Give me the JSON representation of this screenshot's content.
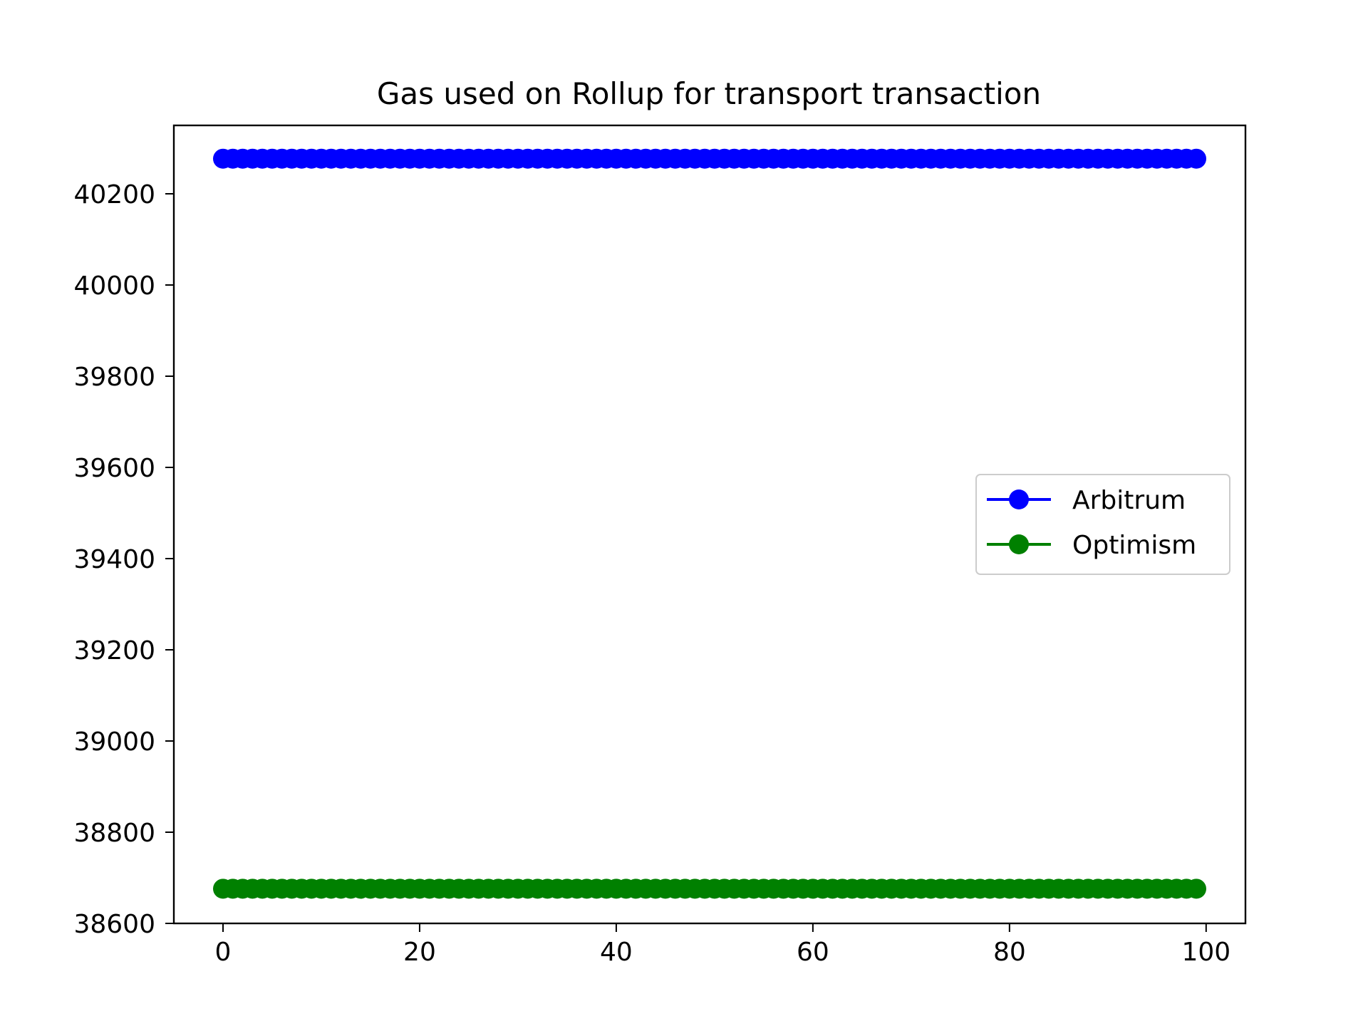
{
  "chart_data": {
    "type": "line",
    "title": "Gas used on Rollup for transport transaction",
    "xlabel": "",
    "ylabel": "",
    "xlim": [
      -5,
      104
    ],
    "ylim": [
      38600,
      40350
    ],
    "x_ticks": [
      0,
      20,
      40,
      60,
      80,
      100
    ],
    "y_ticks": [
      38600,
      38800,
      39000,
      39200,
      39400,
      39600,
      39800,
      40000,
      40200
    ],
    "x_range": {
      "start": 0,
      "end": 99,
      "step": 1
    },
    "series": [
      {
        "name": "Arbitrum",
        "constant_value": 40277,
        "color": "#0000ff",
        "marker": "circle"
      },
      {
        "name": "Optimism",
        "constant_value": 38676,
        "color": "#008000",
        "marker": "circle"
      }
    ],
    "legend": {
      "position": "center-right"
    },
    "grid": false
  }
}
